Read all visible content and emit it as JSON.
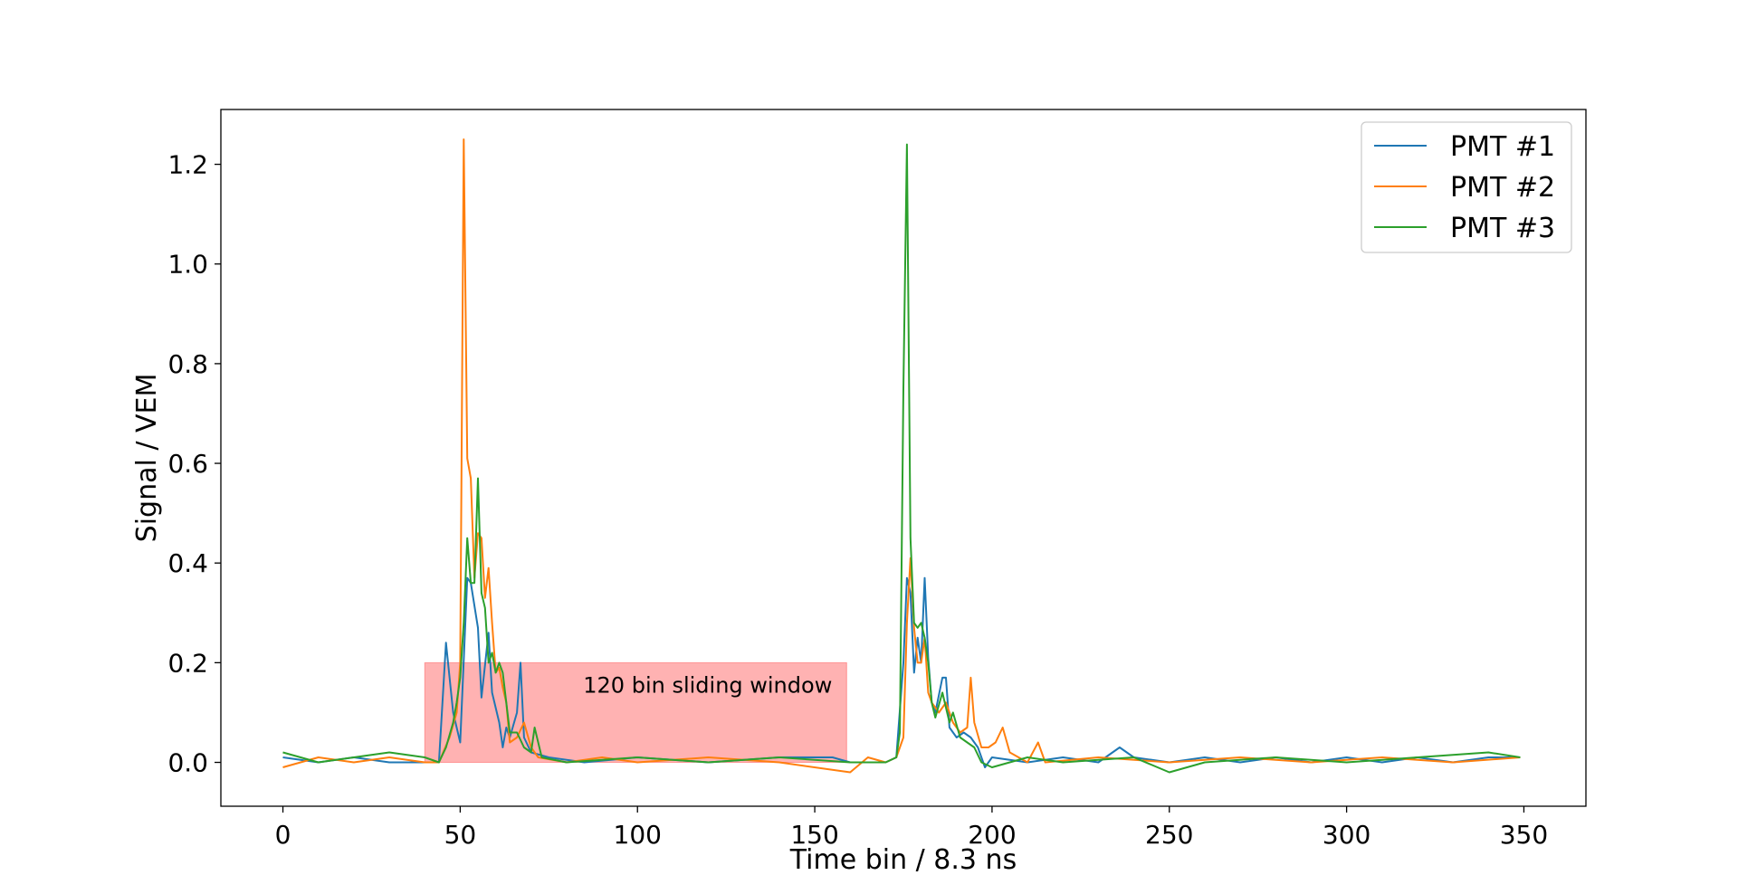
{
  "chart_data": {
    "type": "line",
    "title": "",
    "xlabel": "Time bin / 8.3 ns",
    "ylabel": "Signal / VEM",
    "xlim": [
      -17.5,
      367.5
    ],
    "ylim": [
      -0.088,
      1.31
    ],
    "xticks": [
      0,
      50,
      100,
      150,
      200,
      250,
      300,
      350
    ],
    "xtick_labels": [
      "0",
      "50",
      "100",
      "150",
      "200",
      "250",
      "300",
      "350"
    ],
    "yticks": [
      0.0,
      0.2,
      0.4,
      0.6,
      0.8,
      1.0,
      1.2
    ],
    "ytick_labels": [
      "0.0",
      "0.2",
      "0.4",
      "0.6",
      "0.8",
      "1.0",
      "1.2"
    ],
    "grid": false,
    "legend_position": "top-right",
    "annotation": {
      "text": "120 bin sliding window",
      "x_start": 40,
      "x_end": 159,
      "y_start": 0.0,
      "y_end": 0.2,
      "color": "#ff0000",
      "alpha": 0.3
    },
    "series": [
      {
        "name": "PMT #1",
        "color": "#1f77b4",
        "points": [
          [
            0,
            0.01
          ],
          [
            10,
            0.0
          ],
          [
            20,
            0.01
          ],
          [
            30,
            0.0
          ],
          [
            40,
            0.0
          ],
          [
            44,
            0.0
          ],
          [
            46,
            0.24
          ],
          [
            48,
            0.1
          ],
          [
            50,
            0.04
          ],
          [
            52,
            0.37
          ],
          [
            53,
            0.36
          ],
          [
            55,
            0.27
          ],
          [
            56,
            0.13
          ],
          [
            58,
            0.26
          ],
          [
            59,
            0.14
          ],
          [
            61,
            0.08
          ],
          [
            62,
            0.03
          ],
          [
            63,
            0.07
          ],
          [
            64,
            0.05
          ],
          [
            66,
            0.1
          ],
          [
            67,
            0.2
          ],
          [
            68,
            0.05
          ],
          [
            70,
            0.02
          ],
          [
            75,
            0.01
          ],
          [
            85,
            0.0
          ],
          [
            100,
            0.01
          ],
          [
            120,
            0.0
          ],
          [
            140,
            0.01
          ],
          [
            155,
            0.01
          ],
          [
            160,
            0.0
          ],
          [
            170,
            0.0
          ],
          [
            173,
            0.01
          ],
          [
            175,
            0.2
          ],
          [
            176,
            0.37
          ],
          [
            177,
            0.34
          ],
          [
            178,
            0.18
          ],
          [
            179,
            0.25
          ],
          [
            180,
            0.2
          ],
          [
            181,
            0.37
          ],
          [
            182,
            0.21
          ],
          [
            183,
            0.12
          ],
          [
            184,
            0.1
          ],
          [
            186,
            0.17
          ],
          [
            187,
            0.17
          ],
          [
            188,
            0.07
          ],
          [
            190,
            0.05
          ],
          [
            192,
            0.06
          ],
          [
            194,
            0.05
          ],
          [
            196,
            0.03
          ],
          [
            198,
            -0.01
          ],
          [
            200,
            0.01
          ],
          [
            210,
            0.0
          ],
          [
            220,
            0.01
          ],
          [
            230,
            0.0
          ],
          [
            236,
            0.03
          ],
          [
            240,
            0.01
          ],
          [
            250,
            0.0
          ],
          [
            260,
            0.01
          ],
          [
            270,
            0.0
          ],
          [
            280,
            0.01
          ],
          [
            290,
            0.0
          ],
          [
            300,
            0.01
          ],
          [
            310,
            0.0
          ],
          [
            320,
            0.01
          ],
          [
            330,
            0.0
          ],
          [
            340,
            0.01
          ],
          [
            349,
            0.01
          ]
        ]
      },
      {
        "name": "PMT #2",
        "color": "#ff7f0e",
        "points": [
          [
            0,
            -0.01
          ],
          [
            10,
            0.01
          ],
          [
            20,
            0.0
          ],
          [
            30,
            0.01
          ],
          [
            40,
            0.0
          ],
          [
            44,
            0.0
          ],
          [
            47,
            0.05
          ],
          [
            49,
            0.1
          ],
          [
            50,
            0.2
          ],
          [
            51,
            1.25
          ],
          [
            52,
            0.61
          ],
          [
            53,
            0.57
          ],
          [
            54,
            0.37
          ],
          [
            55,
            0.46
          ],
          [
            56,
            0.45
          ],
          [
            57,
            0.33
          ],
          [
            58,
            0.39
          ],
          [
            59,
            0.28
          ],
          [
            60,
            0.18
          ],
          [
            61,
            0.19
          ],
          [
            62,
            0.15
          ],
          [
            63,
            0.12
          ],
          [
            64,
            0.04
          ],
          [
            66,
            0.05
          ],
          [
            68,
            0.08
          ],
          [
            70,
            0.03
          ],
          [
            72,
            0.01
          ],
          [
            80,
            0.0
          ],
          [
            90,
            0.01
          ],
          [
            100,
            0.0
          ],
          [
            120,
            0.01
          ],
          [
            140,
            0.0
          ],
          [
            160,
            -0.02
          ],
          [
            165,
            0.01
          ],
          [
            170,
            0.0
          ],
          [
            173,
            0.01
          ],
          [
            175,
            0.05
          ],
          [
            176,
            0.28
          ],
          [
            177,
            0.41
          ],
          [
            178,
            0.27
          ],
          [
            179,
            0.2
          ],
          [
            180,
            0.2
          ],
          [
            181,
            0.25
          ],
          [
            182,
            0.14
          ],
          [
            183,
            0.12
          ],
          [
            185,
            0.1
          ],
          [
            187,
            0.12
          ],
          [
            189,
            0.08
          ],
          [
            191,
            0.06
          ],
          [
            193,
            0.07
          ],
          [
            194,
            0.17
          ],
          [
            195,
            0.08
          ],
          [
            197,
            0.03
          ],
          [
            199,
            0.03
          ],
          [
            201,
            0.04
          ],
          [
            203,
            0.07
          ],
          [
            205,
            0.02
          ],
          [
            210,
            0.0
          ],
          [
            213,
            0.04
          ],
          [
            215,
            0.0
          ],
          [
            230,
            0.01
          ],
          [
            250,
            0.0
          ],
          [
            270,
            0.01
          ],
          [
            290,
            0.0
          ],
          [
            310,
            0.01
          ],
          [
            330,
            0.0
          ],
          [
            349,
            0.01
          ]
        ]
      },
      {
        "name": "PMT #3",
        "color": "#2ca02c",
        "points": [
          [
            0,
            0.02
          ],
          [
            10,
            0.0
          ],
          [
            20,
            0.01
          ],
          [
            30,
            0.02
          ],
          [
            40,
            0.01
          ],
          [
            44,
            0.0
          ],
          [
            46,
            0.03
          ],
          [
            48,
            0.08
          ],
          [
            49,
            0.12
          ],
          [
            50,
            0.17
          ],
          [
            51,
            0.28
          ],
          [
            52,
            0.45
          ],
          [
            53,
            0.36
          ],
          [
            54,
            0.36
          ],
          [
            55,
            0.57
          ],
          [
            56,
            0.34
          ],
          [
            57,
            0.31
          ],
          [
            58,
            0.2
          ],
          [
            59,
            0.22
          ],
          [
            60,
            0.18
          ],
          [
            61,
            0.2
          ],
          [
            62,
            0.18
          ],
          [
            63,
            0.12
          ],
          [
            64,
            0.06
          ],
          [
            66,
            0.06
          ],
          [
            68,
            0.03
          ],
          [
            70,
            0.02
          ],
          [
            71,
            0.07
          ],
          [
            73,
            0.01
          ],
          [
            80,
            0.0
          ],
          [
            100,
            0.01
          ],
          [
            120,
            0.0
          ],
          [
            140,
            0.01
          ],
          [
            160,
            0.0
          ],
          [
            170,
            0.0
          ],
          [
            173,
            0.01
          ],
          [
            174,
            0.06
          ],
          [
            175,
            0.75
          ],
          [
            176,
            1.24
          ],
          [
            177,
            0.45
          ],
          [
            178,
            0.28
          ],
          [
            179,
            0.27
          ],
          [
            180,
            0.28
          ],
          [
            181,
            0.25
          ],
          [
            182,
            0.2
          ],
          [
            183,
            0.12
          ],
          [
            184,
            0.09
          ],
          [
            186,
            0.14
          ],
          [
            188,
            0.08
          ],
          [
            189,
            0.1
          ],
          [
            191,
            0.05
          ],
          [
            193,
            0.04
          ],
          [
            195,
            0.03
          ],
          [
            197,
            0.0
          ],
          [
            200,
            -0.01
          ],
          [
            210,
            0.01
          ],
          [
            220,
            0.0
          ],
          [
            240,
            0.01
          ],
          [
            250,
            -0.02
          ],
          [
            260,
            0.0
          ],
          [
            280,
            0.01
          ],
          [
            300,
            0.0
          ],
          [
            320,
            0.01
          ],
          [
            340,
            0.02
          ],
          [
            349,
            0.01
          ]
        ]
      }
    ]
  }
}
